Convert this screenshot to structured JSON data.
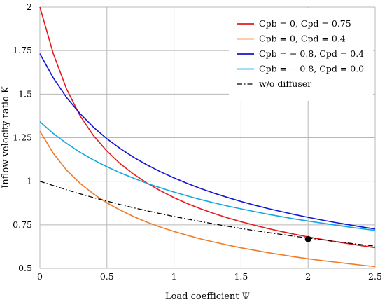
{
  "chart_data": {
    "type": "line",
    "title": "",
    "xlabel": "Load coefficient Ψ",
    "ylabel": "Inflow velocity ratio K",
    "xlim": [
      0,
      2.5
    ],
    "ylim": [
      0.5,
      2
    ],
    "x_ticks": [
      0,
      0.5,
      1,
      1.5,
      2,
      2.5
    ],
    "x_tick_labels": [
      "0",
      "0.5",
      "1",
      "1.5",
      "2",
      "2.5"
    ],
    "y_ticks": [
      0.5,
      0.75,
      1,
      1.25,
      1.5,
      1.75,
      2
    ],
    "y_tick_labels": [
      "0.5",
      "0.75",
      "1",
      "1.25",
      "1.5",
      "1.75",
      "2"
    ],
    "grid": true,
    "legend_position": "top-right",
    "x": [
      0,
      0.1,
      0.2,
      0.3,
      0.4,
      0.5,
      0.6,
      0.7,
      0.8,
      0.9,
      1.0,
      1.1,
      1.2,
      1.3,
      1.4,
      1.5,
      1.6,
      1.7,
      1.8,
      1.9,
      2.0,
      2.1,
      2.2,
      2.3,
      2.4,
      2.5
    ],
    "series": [
      {
        "name": "Cpb = 0, Cpd = 0.75",
        "color": "#e8191d",
        "dash": "solid",
        "values": [
          2.0,
          1.732,
          1.528,
          1.375,
          1.262,
          1.173,
          1.1,
          1.04,
          0.989,
          0.945,
          0.906,
          0.872,
          0.842,
          0.815,
          0.79,
          0.768,
          0.748,
          0.729,
          0.712,
          0.696,
          0.681,
          0.667,
          0.654,
          0.642,
          0.63,
          0.619
        ]
      },
      {
        "name": "Cpb = 0, Cpd = 0.4",
        "color": "#f07c28",
        "dash": "solid",
        "values": [
          1.288,
          1.16,
          1.063,
          0.988,
          0.927,
          0.876,
          0.834,
          0.797,
          0.765,
          0.737,
          0.712,
          0.69,
          0.669,
          0.651,
          0.634,
          0.618,
          0.604,
          0.59,
          0.578,
          0.566,
          0.555,
          0.545,
          0.536,
          0.527,
          0.518,
          0.51
        ]
      },
      {
        "name": "Cpb = − 0.8, Cpd = 0.4",
        "color": "#1414d4",
        "dash": "solid",
        "values": [
          1.732,
          1.593,
          1.48,
          1.388,
          1.31,
          1.244,
          1.187,
          1.137,
          1.093,
          1.054,
          1.019,
          0.987,
          0.958,
          0.931,
          0.907,
          0.884,
          0.863,
          0.844,
          0.826,
          0.809,
          0.793,
          0.778,
          0.764,
          0.751,
          0.738,
          0.726
        ]
      },
      {
        "name": "Cpb = − 0.8, Cpd = 0.0",
        "color": "#15a8e0",
        "dash": "solid",
        "values": [
          1.342,
          1.274,
          1.217,
          1.166,
          1.122,
          1.083,
          1.048,
          1.017,
          0.988,
          0.962,
          0.938,
          0.916,
          0.895,
          0.876,
          0.858,
          0.842,
          0.826,
          0.811,
          0.797,
          0.784,
          0.772,
          0.76,
          0.749,
          0.738,
          0.728,
          0.718
        ]
      },
      {
        "name": "w/o diffuser",
        "color": "#000000",
        "dash": "dashdot",
        "values": [
          1.0,
          0.975,
          0.951,
          0.928,
          0.906,
          0.886,
          0.866,
          0.848,
          0.83,
          0.814,
          0.798,
          0.783,
          0.769,
          0.755,
          0.742,
          0.729,
          0.717,
          0.706,
          0.695,
          0.684,
          0.674,
          0.664,
          0.654,
          0.645,
          0.636,
          0.628
        ]
      }
    ],
    "markers": [
      {
        "x": 2.0,
        "y": 0.668,
        "color": "#000000"
      }
    ]
  }
}
